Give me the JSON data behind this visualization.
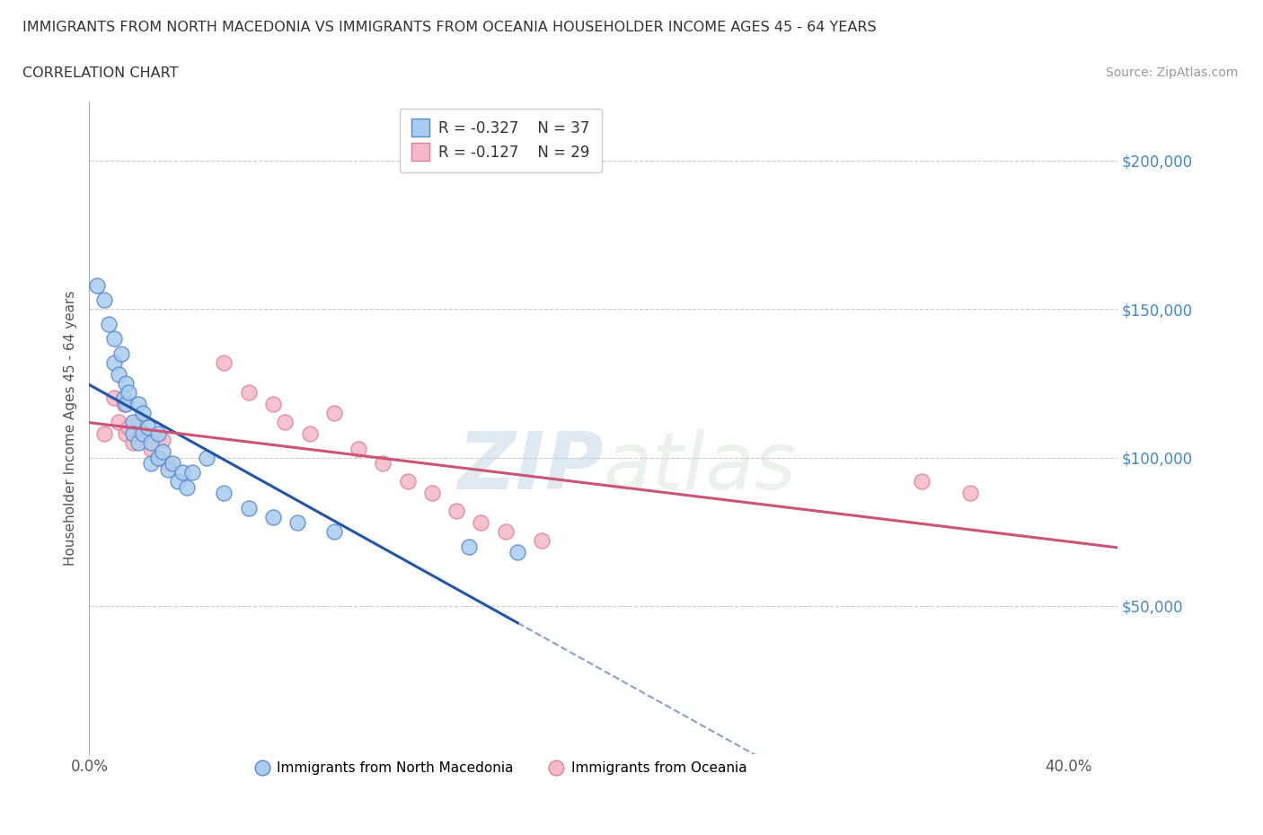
{
  "title_line1": "IMMIGRANTS FROM NORTH MACEDONIA VS IMMIGRANTS FROM OCEANIA HOUSEHOLDER INCOME AGES 45 - 64 YEARS",
  "title_line2": "CORRELATION CHART",
  "source_text": "Source: ZipAtlas.com",
  "watermark_zip": "ZIP",
  "watermark_atlas": "atlas",
  "ylabel": "Householder Income Ages 45 - 64 years",
  "xlim": [
    0.0,
    0.42
  ],
  "ylim": [
    0,
    220000
  ],
  "series1_label": "Immigrants from North Macedonia",
  "series1_color": "#aaccee",
  "series1_edge_color": "#5588cc",
  "series1_line_color": "#2255aa",
  "series1_R": -0.327,
  "series1_N": 37,
  "series2_label": "Immigrants from Oceania",
  "series2_color": "#f5b8c8",
  "series2_edge_color": "#e08098",
  "series2_line_color": "#cc5575",
  "series2_R": -0.127,
  "series2_N": 29,
  "blue_scatter_x": [
    0.003,
    0.006,
    0.008,
    0.01,
    0.01,
    0.012,
    0.013,
    0.014,
    0.015,
    0.015,
    0.016,
    0.018,
    0.018,
    0.02,
    0.02,
    0.022,
    0.022,
    0.024,
    0.025,
    0.025,
    0.028,
    0.028,
    0.03,
    0.032,
    0.034,
    0.036,
    0.038,
    0.04,
    0.042,
    0.048,
    0.055,
    0.065,
    0.075,
    0.085,
    0.1,
    0.155,
    0.175
  ],
  "blue_scatter_y": [
    158000,
    153000,
    145000,
    140000,
    132000,
    128000,
    135000,
    120000,
    125000,
    118000,
    122000,
    112000,
    108000,
    118000,
    105000,
    115000,
    108000,
    110000,
    105000,
    98000,
    108000,
    100000,
    102000,
    96000,
    98000,
    92000,
    95000,
    90000,
    95000,
    100000,
    88000,
    83000,
    80000,
    78000,
    75000,
    70000,
    68000
  ],
  "pink_scatter_x": [
    0.006,
    0.01,
    0.012,
    0.014,
    0.015,
    0.016,
    0.018,
    0.02,
    0.022,
    0.025,
    0.028,
    0.03,
    0.032,
    0.055,
    0.065,
    0.075,
    0.08,
    0.09,
    0.1,
    0.11,
    0.12,
    0.13,
    0.14,
    0.15,
    0.16,
    0.17,
    0.185,
    0.34,
    0.36
  ],
  "pink_scatter_y": [
    108000,
    120000,
    112000,
    118000,
    108000,
    110000,
    105000,
    112000,
    108000,
    103000,
    100000,
    106000,
    98000,
    132000,
    122000,
    118000,
    112000,
    108000,
    115000,
    103000,
    98000,
    92000,
    88000,
    82000,
    78000,
    75000,
    72000,
    92000,
    88000
  ],
  "background_color": "#ffffff",
  "grid_color": "#cccccc"
}
